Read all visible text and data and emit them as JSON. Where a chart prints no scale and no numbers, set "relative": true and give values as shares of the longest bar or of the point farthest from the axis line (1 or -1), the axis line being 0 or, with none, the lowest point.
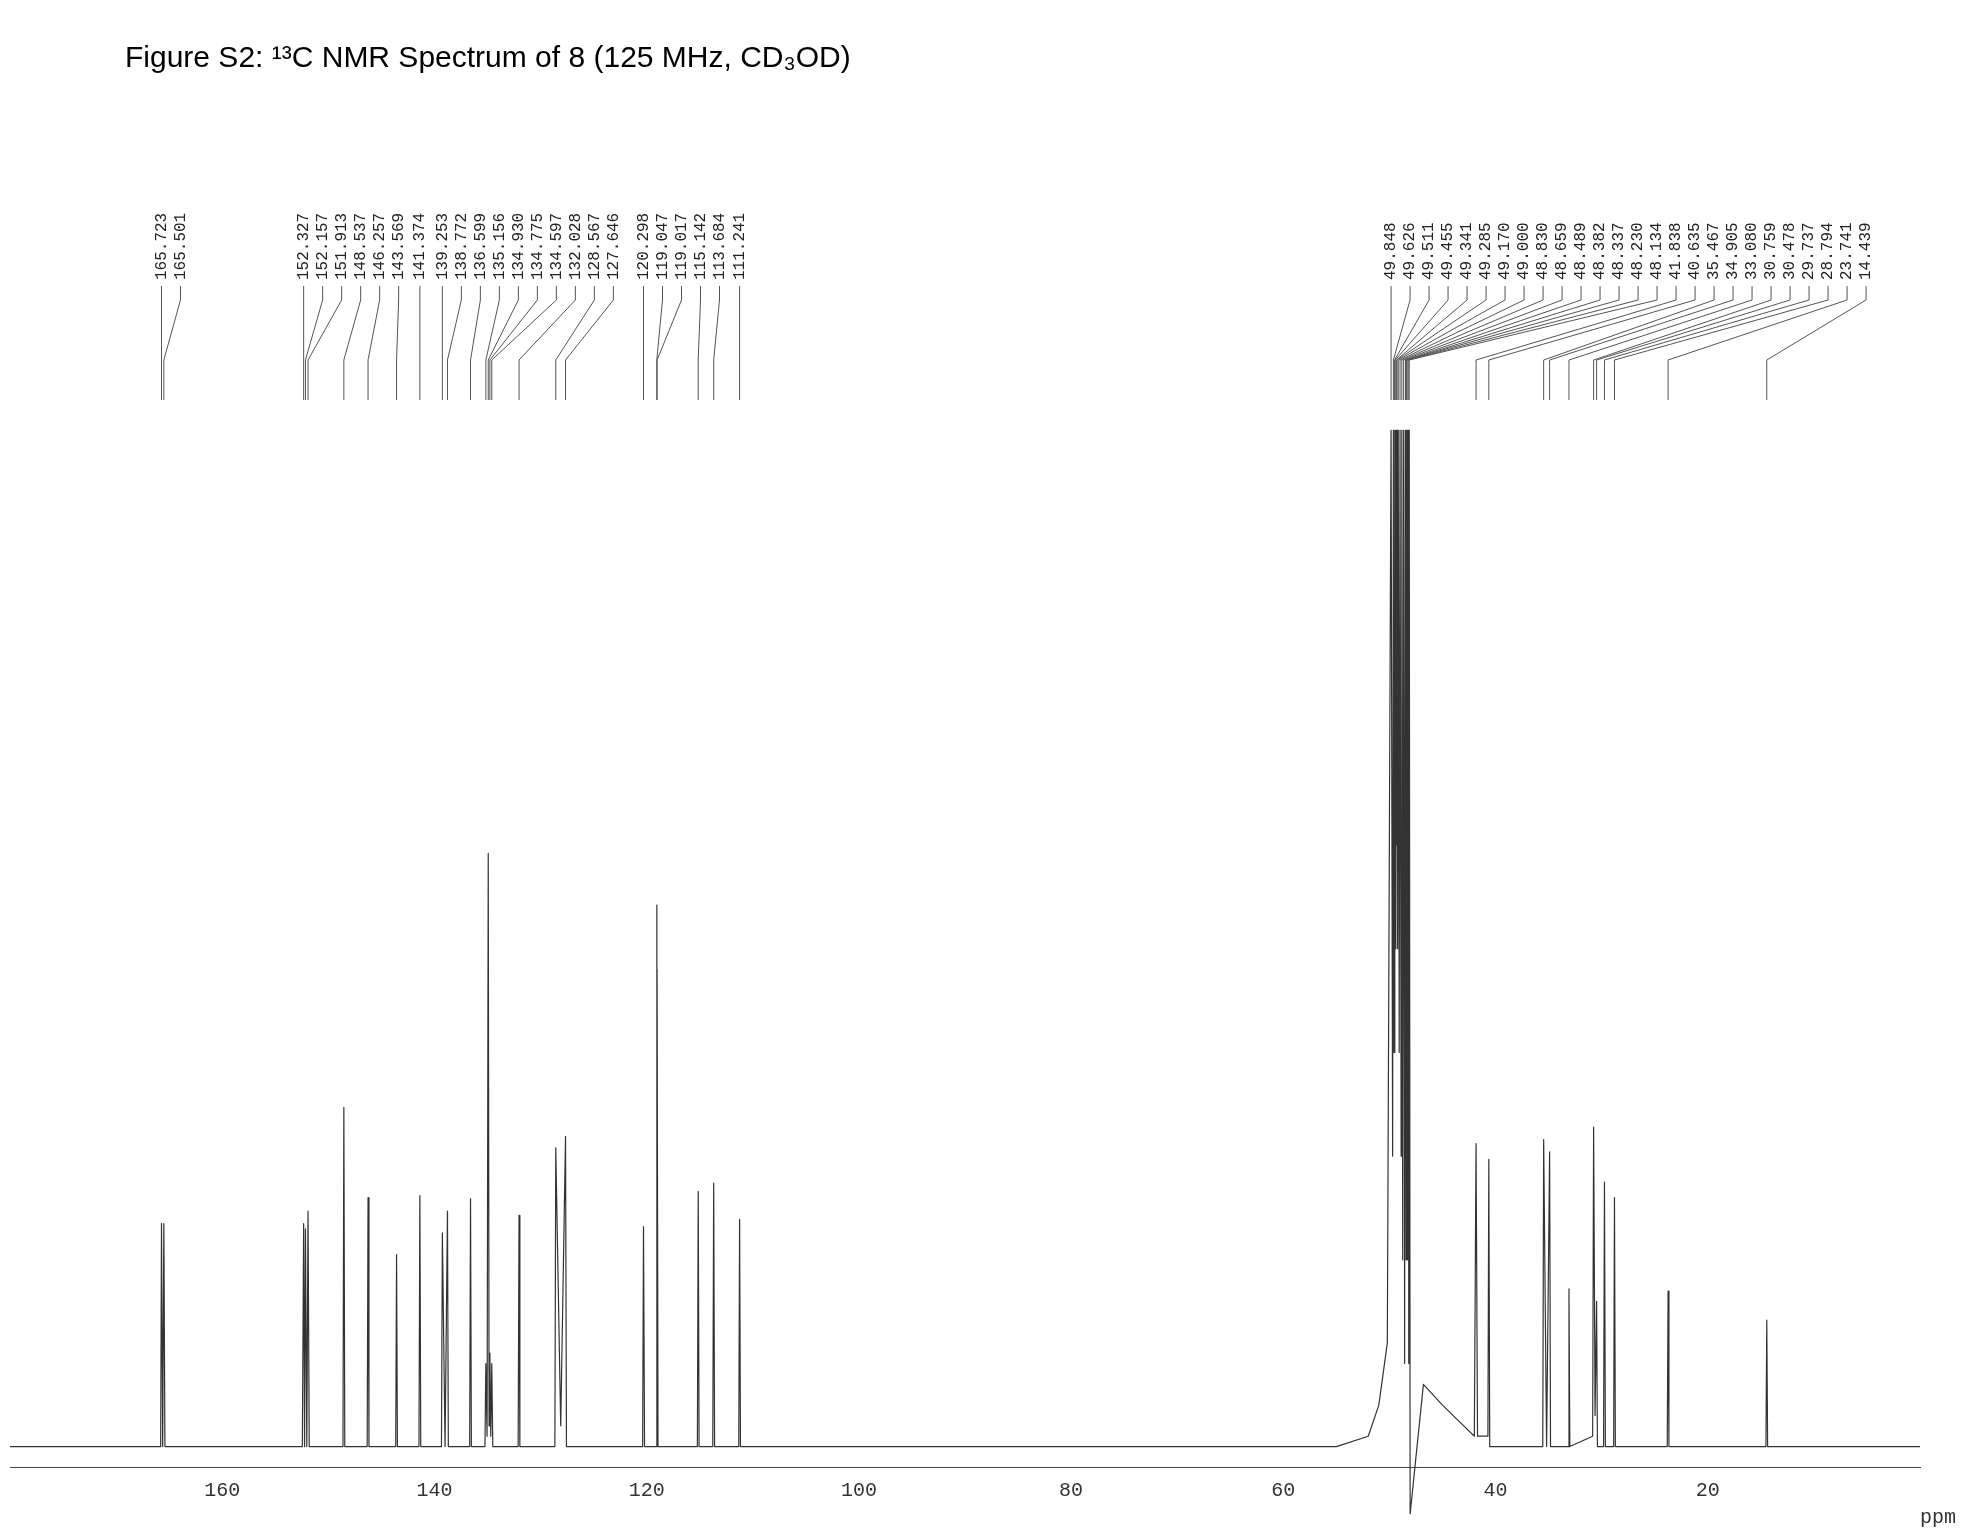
{
  "chart_data": {
    "type": "line",
    "title": "Figure S2: ¹³C NMR Spectrum of 8 (125 MHz, CD₃OD)",
    "xlabel": "ppm",
    "relative": true,
    "color": "#333333",
    "marker": "none",
    "grid": false,
    "legend": false,
    "tick_labels": "x",
    "xlim": [
      180,
      0
    ],
    "xticks": [
      160,
      140,
      120,
      100,
      80,
      60,
      40,
      20
    ],
    "x": [
      180,
      165.8,
      165.723,
      165.61,
      165.501,
      165.4,
      152.45,
      152.327,
      152.24,
      152.157,
      152.03,
      151.913,
      151.8,
      148.62,
      148.537,
      148.45,
      146.34,
      146.257,
      146.17,
      143.65,
      143.569,
      143.49,
      141.46,
      141.374,
      141.29,
      139.34,
      139.253,
      139.0,
      138.772,
      138.69,
      136.68,
      136.599,
      136.52,
      135.24,
      135.156,
      135.04,
      134.93,
      134.85,
      134.775,
      134.69,
      134.597,
      134.5,
      132.11,
      132.028,
      131.95,
      128.65,
      128.567,
      128.1,
      127.646,
      127.56,
      120.38,
      120.298,
      120.2,
      119.1,
      119.047,
      119.03,
      119.017,
      118.93,
      115.22,
      115.142,
      115.06,
      113.77,
      113.684,
      113.6,
      111.32,
      111.241,
      111.16,
      55,
      52,
      51,
      50.2,
      49.848,
      49.7,
      49.626,
      49.57,
      49.511,
      49.48,
      49.455,
      49.4,
      49.341,
      49.31,
      49.285,
      49.23,
      49.17,
      49.08,
      49.0,
      48.9,
      48.83,
      48.75,
      48.659,
      48.57,
      48.489,
      48.43,
      48.382,
      48.36,
      48.337,
      48.28,
      48.23,
      48.18,
      48.134,
      48.05,
      47.6,
      46.8,
      45,
      43,
      42.0,
      41.838,
      41.7,
      40.72,
      40.635,
      40.55,
      35.55,
      35.467,
      35.19,
      34.905,
      34.82,
      33.16,
      33.08,
      33.0,
      30.85,
      30.759,
      30.62,
      30.478,
      30.4,
      29.82,
      29.737,
      29.65,
      28.87,
      28.794,
      28.71,
      23.82,
      23.741,
      23.66,
      14.52,
      14.439,
      14.36,
      0
    ],
    "values": [
      0.02,
      0.02,
      0.235,
      0.02,
      0.235,
      0.02,
      0.02,
      0.235,
      0.02,
      0.23,
      0.02,
      0.247,
      0.02,
      0.02,
      0.347,
      0.02,
      0.02,
      0.26,
      0.02,
      0.02,
      0.205,
      0.02,
      0.02,
      0.262,
      0.02,
      0.02,
      0.226,
      0.02,
      0.247,
      0.02,
      0.02,
      0.259,
      0.02,
      0.02,
      0.1,
      0.03,
      0.592,
      0.04,
      0.11,
      0.03,
      0.1,
      0.02,
      0.02,
      0.243,
      0.02,
      0.02,
      0.308,
      0.04,
      0.319,
      0.02,
      0.02,
      0.232,
      0.02,
      0.02,
      0.542,
      0.3,
      0.48,
      0.02,
      0.02,
      0.266,
      0.02,
      0.02,
      0.274,
      0.02,
      0.02,
      0.239,
      0.02,
      0.02,
      0.03,
      0.06,
      0.12,
      1,
      0.3,
      1,
      0.4,
      1,
      0.5,
      1,
      0.5,
      1,
      0.6,
      1,
      0.5,
      1,
      0.4,
      1,
      0.3,
      1,
      0.2,
      1,
      0.1,
      1,
      0.2,
      1,
      0.3,
      1,
      0.2,
      1,
      0.1,
      1,
      -0.045,
      0.0,
      0.08,
      0.06,
      0.04,
      0.03,
      0.312,
      0.03,
      0.03,
      0.297,
      0.02,
      0.02,
      0.316,
      0.02,
      0.304,
      0.02,
      0.02,
      0.172,
      0.02,
      0.03,
      0.328,
      0.05,
      0.16,
      0.02,
      0.02,
      0.275,
      0.02,
      0.02,
      0.26,
      0.02,
      0.02,
      0.17,
      0.02,
      0.02,
      0.142,
      0.02,
      0.02
    ],
    "annotations": [
      "165.723",
      "165.501",
      "152.327",
      "152.157",
      "151.913",
      "148.537",
      "146.257",
      "143.569",
      "141.374",
      "139.253",
      "138.772",
      "136.599",
      "135.156",
      "134.930",
      "134.775",
      "134.597",
      "132.028",
      "128.567",
      "127.646",
      "120.298",
      "119.047",
      "119.017",
      "115.142",
      "113.684",
      "111.241",
      "49.848",
      "49.626",
      "49.511",
      "49.455",
      "49.341",
      "49.285",
      "49.170",
      "49.000",
      "48.830",
      "48.659",
      "48.489",
      "48.382",
      "48.337",
      "48.230",
      "48.134",
      "41.838",
      "40.635",
      "35.467",
      "34.905",
      "33.080",
      "30.759",
      "30.478",
      "29.737",
      "28.794",
      "23.741",
      "14.439"
    ]
  }
}
